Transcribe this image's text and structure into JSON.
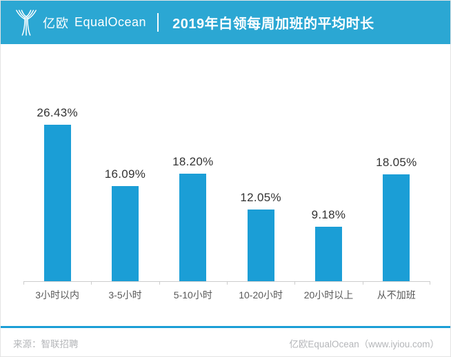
{
  "header": {
    "logo_cn": "亿欧",
    "logo_en": "EqualOcean",
    "title": "2019年白领每周加班的平均时长"
  },
  "chart_data": {
    "type": "bar",
    "title": "2019年白领每周加班的平均时长",
    "categories": [
      "3小时以内",
      "3-5小时",
      "5-10小时",
      "10-20小时",
      "20小时以上",
      "从不加班"
    ],
    "values": [
      26.43,
      16.09,
      18.2,
      12.05,
      9.18,
      18.05
    ],
    "value_labels": [
      "26.43%",
      "16.09%",
      "18.20%",
      "12.05%",
      "9.18%",
      "18.05%"
    ],
    "xlabel": "",
    "ylabel": "",
    "ylim": [
      0,
      30
    ],
    "grid": false,
    "legend": "none",
    "bar_color": "#1B9ED6"
  },
  "footer": {
    "source": "来源：智联招聘",
    "credit": "亿欧EqualOcean（www.iyiou.com）"
  },
  "colors": {
    "header_bg": "#2BA7D3",
    "bar": "#1B9ED6",
    "axis_line": "#CCCCCC",
    "value_label": "#333333",
    "axis_label": "#595959",
    "footer_text": "#B4B6B9"
  }
}
